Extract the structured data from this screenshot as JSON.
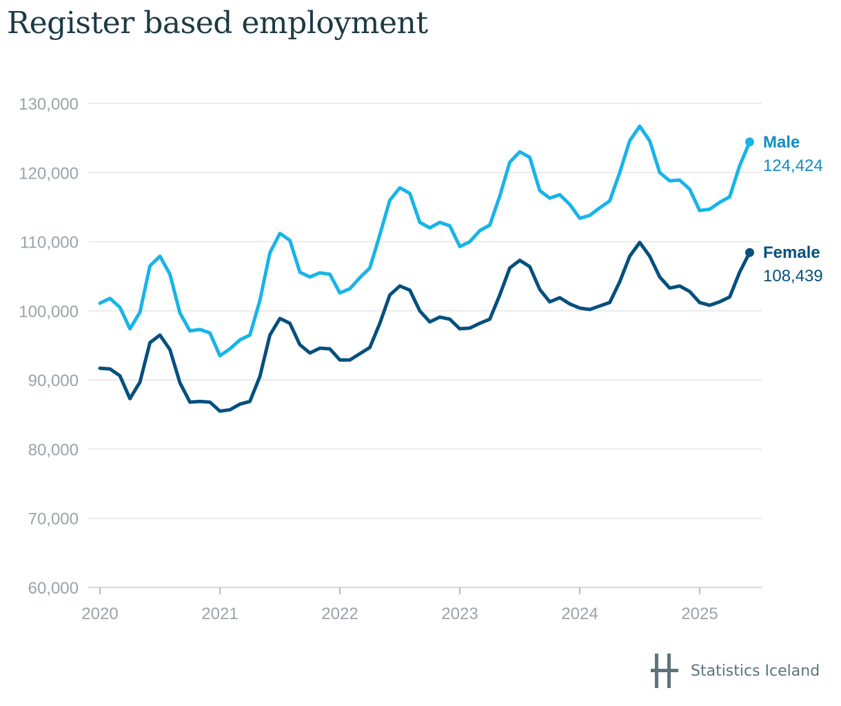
{
  "chart_data": {
    "type": "line",
    "title": "Register based employment",
    "xlabel": "",
    "ylabel": "",
    "ylim": [
      60000,
      130000
    ],
    "y_ticks": [
      60000,
      70000,
      80000,
      90000,
      100000,
      110000,
      120000,
      130000
    ],
    "y_tick_labels": [
      "60,000",
      "70,000",
      "80,000",
      "90,000",
      "100,000",
      "110,000",
      "120,000",
      "130,000"
    ],
    "x_tick_labels": [
      "2020",
      "2021",
      "2022",
      "2023",
      "2024",
      "2025"
    ],
    "grid": true,
    "legend": "end-of-line labels, right",
    "x": [
      "2020-01",
      "2020-02",
      "2020-03",
      "2020-04",
      "2020-05",
      "2020-06",
      "2020-07",
      "2020-08",
      "2020-09",
      "2020-10",
      "2020-11",
      "2020-12",
      "2021-01",
      "2021-02",
      "2021-03",
      "2021-04",
      "2021-05",
      "2021-06",
      "2021-07",
      "2021-08",
      "2021-09",
      "2021-10",
      "2021-11",
      "2021-12",
      "2022-01",
      "2022-02",
      "2022-03",
      "2022-04",
      "2022-05",
      "2022-06",
      "2022-07",
      "2022-08",
      "2022-09",
      "2022-10",
      "2022-11",
      "2022-12",
      "2023-01",
      "2023-02",
      "2023-03",
      "2023-04",
      "2023-05",
      "2023-06",
      "2023-07",
      "2023-08",
      "2023-09",
      "2023-10",
      "2023-11",
      "2023-12",
      "2024-01",
      "2024-02",
      "2024-03",
      "2024-04",
      "2024-05",
      "2024-06",
      "2024-07",
      "2024-08",
      "2024-09",
      "2024-10",
      "2024-11",
      "2024-12",
      "2025-01",
      "2025-02",
      "2025-03",
      "2025-04",
      "2025-05",
      "2025-06"
    ],
    "series": [
      {
        "name": "Male",
        "last_label": "124,424",
        "color": "#18b4e9",
        "label_color": "#0f8ec4",
        "values": [
          101100,
          101800,
          100500,
          97400,
          99800,
          106500,
          107900,
          105300,
          99700,
          97100,
          97300,
          96800,
          93500,
          94500,
          95800,
          96500,
          101500,
          108400,
          111200,
          110200,
          105600,
          104900,
          105500,
          105300,
          102600,
          103200,
          104800,
          106200,
          111000,
          116000,
          117800,
          117000,
          112800,
          112000,
          112800,
          112300,
          109300,
          110000,
          111600,
          112400,
          116600,
          121500,
          123000,
          122200,
          117400,
          116300,
          116800,
          115400,
          113400,
          113800,
          114900,
          115900,
          120000,
          124600,
          126700,
          124600,
          120000,
          118800,
          118900,
          117600,
          114500,
          114700,
          115700,
          116500,
          121000,
          124424
        ]
      },
      {
        "name": "Female",
        "last_label": "108,439",
        "color": "#05507d",
        "label_color": "#05507d",
        "values": [
          91700,
          91600,
          90600,
          87300,
          89700,
          95400,
          96500,
          94400,
          89600,
          86800,
          86900,
          86800,
          85500,
          85700,
          86500,
          86900,
          90500,
          96500,
          98900,
          98200,
          95100,
          93900,
          94600,
          94500,
          92900,
          92900,
          93800,
          94700,
          98200,
          102300,
          103600,
          103000,
          100000,
          98400,
          99100,
          98800,
          97400,
          97500,
          98200,
          98800,
          102300,
          106200,
          107300,
          106400,
          103100,
          101300,
          101900,
          101000,
          100400,
          100200,
          100700,
          101200,
          104200,
          107900,
          109900,
          107900,
          104900,
          103300,
          103600,
          102800,
          101200,
          100800,
          101300,
          102000,
          105600,
          108439
        ]
      }
    ]
  },
  "source_logo": {
    "text": "Statistics Iceland",
    "icon": "statistics-iceland-logo-icon",
    "color": "#5e7379"
  }
}
